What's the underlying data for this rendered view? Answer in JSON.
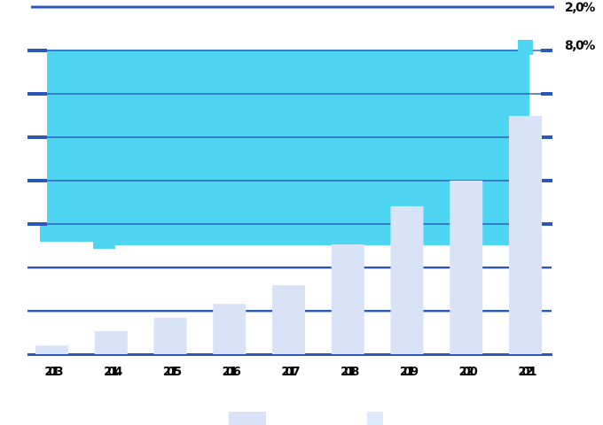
{
  "colors": {
    "background": "#ffffff",
    "area_fill": "#4ed5f2",
    "bar_fill": "#d8e3f8",
    "legend_swatch_alt_fill": "#dde9fc",
    "grid_line": "#2a57b8",
    "label_text": "#000000"
  },
  "chart_data": {
    "type": "combo-bar-area",
    "title": "",
    "xlabel": "",
    "ylabel": "",
    "categories": [
      "2013",
      "2014",
      "2015",
      "2016",
      "2017",
      "2018",
      "2019",
      "2020",
      "2021"
    ],
    "series": [
      {
        "name": "bars",
        "type": "bar",
        "unit": "gridline-steps",
        "values": [
          0.2,
          0.53,
          0.84,
          1.16,
          1.59,
          2.53,
          3.41,
          4.0,
          5.49
        ]
      },
      {
        "name": "band",
        "type": "area",
        "unit": "gridline-steps",
        "top_value": 7.02,
        "bottom_value": 2.51,
        "polygon_points": [
          [
            -0.082,
            7.02
          ],
          [
            8.067,
            7.02
          ],
          [
            8.067,
            2.51
          ],
          [
            1.071,
            2.51
          ],
          [
            1.071,
            2.429
          ],
          [
            0.697,
            2.429
          ],
          [
            0.697,
            2.592
          ],
          [
            -0.202,
            2.592
          ],
          [
            -0.202,
            3.02
          ],
          [
            -0.082,
            3.02
          ]
        ],
        "peak_marker_rect": {
          "x0": 7.873,
          "x1": 8.127,
          "u0": 6.898,
          "u1": 7.245
        }
      }
    ],
    "ylim": [
      0,
      8
    ],
    "gridlines": {
      "on": true,
      "count": 9,
      "step": 1
    },
    "legend_position": "right",
    "right_axis_labels": [
      "2,0%",
      "8,0%"
    ]
  }
}
